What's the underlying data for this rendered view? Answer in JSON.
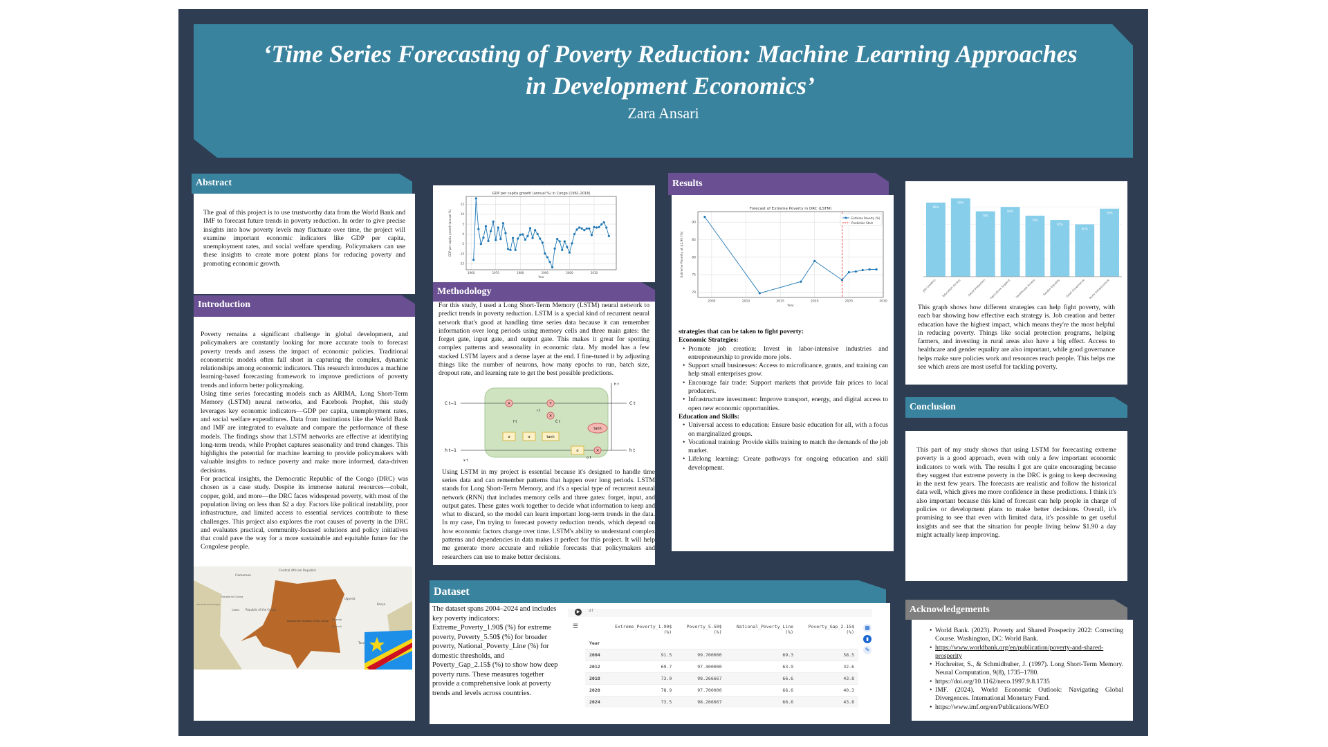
{
  "header": {
    "title": "‘Time Series Forecasting of Poverty Reduction: Machine Learning Approaches in Development Economics’",
    "author": "Zara Ansari"
  },
  "abstract": {
    "heading": "Abstract",
    "text": "The goal of this project is to use trustworthy data from the World Bank and IMF to forecast future trends in poverty reduction. In order to give precise insights into how poverty levels may fluctuate over time, the project will examine important economic indicators like GDP per capita, unemployment rates, and social welfare spending. Policymakers can use these insights to create more potent plans for reducing poverty and promoting economic growth."
  },
  "introduction": {
    "heading": "Introduction",
    "paragraphs": [
      "Poverty remains a significant challenge in global development, and policymakers are constantly looking for more accurate tools to forecast poverty trends and assess the impact of economic policies. Traditional econometric models often fall short in capturing the complex, dynamic relationships among economic indicators. This research introduces a machine learning-based forecasting framework to improve predictions of poverty trends and inform better policymaking.",
      "Using time series forecasting models such as ARIMA, Long Short-Term Memory (LSTM) neural networks, and Facebook Prophet, this study leverages key economic indicators—GDP per capita, unemployment rates, and social welfare expenditures. Data from institutions like the World Bank and IMF are integrated to evaluate and compare the performance of these models. The findings show that LSTM networks are effective at identifying long-term trends, while Prophet captures seasonality and trend changes. This highlights the potential for machine learning to provide policymakers with valuable insights to reduce poverty and make more informed, data-driven decisions.",
      "For practical insights, the Democratic Republic of the Congo (DRC) was chosen as a case study. Despite its immense natural resources—cobalt, copper, gold, and more—the DRC faces widespread poverty, with most of the population living on less than $2 a day. Factors like political instability, poor infrastructure, and limited access to essential services contribute to these challenges. This project also explores the root causes of poverty in the DRC and evaluates practical, community-focused solutions and policy initiatives that could pave the way for a more sustainable and equitable future for the Congolese people."
    ]
  },
  "map": {
    "labels": [
      "Cameroon",
      "Central African Republic",
      "Equatorial Guinea",
      "São Tomé and Príncipe",
      "Gabon",
      "Republic of the Congo",
      "Democratic Republic of the Congo",
      "Uganda",
      "Kenya",
      "Rwanda",
      "Burundi",
      "Tanzania"
    ],
    "flag_colors": {
      "blue": "#1e8fe8",
      "yellow": "#f7d618",
      "red": "#ce1021"
    }
  },
  "methodology": {
    "heading": "Methodology",
    "text1": "For this study, I used a Long Short-Term Memory (LSTM) neural network to predict trends in poverty reduction. LSTM is a special kind of recurrent neural network that's good at handling time series data because it can remember information over long periods using memory cells and three main gates: the forget gate, input gate, and output gate. This makes it great for spotting complex patterns and seasonality in economic data. My model has a few stacked LSTM layers and a dense layer at the end. I fine-tuned it by adjusting things like the number of neurons, how many epochs to run, batch size, dropout rate, and learning rate to get the best possible predictions.",
    "text2": "Using LSTM in my project is essential because it's designed to handle time series data and can remember patterns that happen over long periods. LSTM stands for Long Short-Term Memory, and it's a special type of recurrent neural network (RNN) that includes memory cells and three gates: forget, input, and output gates. These gates work together to decide what information to keep and what to discard, so the model can learn important long-term trends in the data. In my case, I'm trying to forecast poverty reduction trends, which depend on how economic factors change over time. LSTM's ability to understand complex patterns and dependencies in data makes it perfect for this project. It will help me generate more accurate and reliable forecasts that policymakers and researchers can use to make better decisions.",
    "diagram": {
      "c_prev": "C t−1",
      "c_t": "C t",
      "h_prev": "h t−1",
      "h_t": "h t",
      "x_t": "x t",
      "f_t": "f t",
      "i_t": "i t",
      "c_tilde": "C̃ t",
      "o_t": "o t",
      "sigma": "σ",
      "tanh": "tanh",
      "times": "×",
      "plus": "+"
    }
  },
  "results": {
    "heading": "Results",
    "intro": "strategies that can be taken to fight poverty:",
    "groups": [
      {
        "title": "Economic Strategies:",
        "items": [
          "Promote job creation: Invest in labor-intensive industries and entrepreneurship to provide more jobs.",
          "Support small businesses: Access to microfinance, grants, and training can help small enterprises grow.",
          "Encourage fair trade: Support markets that provide fair prices to local producers.",
          "Infrastructure investment: Improve transport, energy, and digital access to open new economic opportunities."
        ]
      },
      {
        "title": "Education and Skills:",
        "items": [
          "Universal access to education: Ensure basic education for all, with a focus on marginalized groups.",
          "Vocational training: Provide skills training to match the demands of the job market.",
          "Lifelong learning: Create pathways for ongoing education and skill development."
        ]
      }
    ]
  },
  "strategy_text": "This graph shows how different strategies can help fight poverty, with each bar showing how effective each strategy is. Job creation and better education have the highest impact, which means they're the most helpful in reducing poverty. Things like social protection programs, helping farmers, and investing in rural areas also have a big effect. Access to healthcare and gender equality are also important, while good governance helps make sure policies work and resources reach people. This helps me see which areas are most useful for tackling poverty.",
  "conclusion": {
    "heading": "Conclusion",
    "text": "This part of my study shows that using LSTM for forecasting extreme poverty is a good approach, even with only a few important economic indicators to work with. The results I got are quite encouraging because they suggest that extreme poverty in the DRC is going to keep decreasing in the next few years. The forecasts are realistic and follow the historical data well, which gives me more confidence in these predictions. I think it's also important because this kind of forecast can help people in charge of policies or development plans to make better decisions. Overall, it's promising to see that even with limited data, it's possible to get useful insights and see that the situation for people living below $1.90 a day might actually keep improving."
  },
  "acknowledgements": {
    "heading": "Acknowledgements",
    "items": [
      "World Bank. (2023). Poverty and Shared Prosperity 2022: Correcting Course. Washington, DC: World Bank.",
      "https://www.worldbank.org/en/publication/poverty-and-shared-prosperity",
      "Hochreiter, S., & Schmidhuber, J. (1997). Long Short-Term Memory. Neural Computation, 9(8), 1735–1780.",
      "https://doi.org/10.1162/neco.1997.9.8.1735",
      "IMF. (2024). World Economic Outlook: Navigating Global Divergences. International Monetary Fund.",
      "https://www.imf.org/en/Publications/WEO"
    ]
  },
  "dataset": {
    "heading": "Dataset",
    "text": "The dataset spans 2004–2024 and includes key poverty indicators: Extreme_Poverty_1.90$ (%) for extreme poverty, Poverty_5.50$ (%) for broader poverty, National_Poverty_Line (%) for domestic thresholds, and Poverty_Gap_2.15$ (%) to show how deep poverty runs. These measures together provide a comprehensive look at poverty trends and levels across countries.",
    "cell_code": "df",
    "index_name": "Year",
    "columns": [
      "Extreme_Poverty_1.90$ (%)",
      "Poverty_5.50$ (%)",
      "National_Poverty_Line (%)",
      "Poverty_Gap_2.15$ (%)"
    ],
    "rows": [
      [
        "2004",
        "91.5",
        "99.700000",
        "69.3",
        "58.5"
      ],
      [
        "2012",
        "69.7",
        "97.400000",
        "63.9",
        "32.6"
      ],
      [
        "2018",
        "73.0",
        "98.266667",
        "66.6",
        "43.8"
      ],
      [
        "2020",
        "78.9",
        "97.700000",
        "66.6",
        "40.3"
      ],
      [
        "2024",
        "73.5",
        "98.266667",
        "66.6",
        "43.8"
      ]
    ]
  },
  "colors": {
    "background": "#2e3d52",
    "teal": "#3a839f",
    "purple": "#6a4f93",
    "gray": "#7f7f7f",
    "line": "#1f77b4",
    "bar": "#87ceeb"
  },
  "chart_data": [
    {
      "type": "line",
      "title": "GDP per capita growth (annual %) in Congo (1961-2016)",
      "xlabel": "Year",
      "ylabel": "GDP per capita growth (annual %)",
      "xlim": [
        1958,
        2019
      ],
      "ylim": [
        -18,
        19
      ],
      "xticks": [
        1960,
        1970,
        1980,
        1990,
        2000,
        2010
      ],
      "yticks": [
        -15,
        -10,
        -5,
        0,
        5,
        10,
        15
      ],
      "grid": true,
      "x": [
        1961,
        1962,
        1963,
        1964,
        1965,
        1966,
        1967,
        1968,
        1969,
        1970,
        1971,
        1972,
        1973,
        1974,
        1975,
        1976,
        1977,
        1978,
        1979,
        1980,
        1981,
        1982,
        1983,
        1984,
        1985,
        1986,
        1987,
        1988,
        1989,
        1990,
        1991,
        1992,
        1993,
        1994,
        1995,
        1996,
        1997,
        1998,
        1999,
        2000,
        2001,
        2002,
        2003,
        2004,
        2005,
        2006,
        2007,
        2008,
        2009,
        2010,
        2011,
        2012,
        2013,
        2014,
        2015,
        2016
      ],
      "y": [
        -13,
        18,
        2.5,
        -5,
        -1.8,
        4,
        -3.5,
        1.5,
        6.3,
        -3,
        3.3,
        -2.5,
        5.5,
        0.5,
        -7.5,
        -8,
        -2,
        -8,
        -2.3,
        -0.3,
        -0.2,
        -2.8,
        -1,
        3,
        -2,
        2,
        0,
        -2.3,
        -4.3,
        -9.8,
        -11.7,
        -14,
        -16.8,
        -7.3,
        -2.5,
        -3.7,
        -8,
        -3.7,
        -6.5,
        -9.3,
        -4.7,
        0,
        2.3,
        3.3,
        2.8,
        2,
        2.8,
        2.8,
        -0.5,
        3.5,
        3.3,
        3.5,
        4.9,
        5.9,
        3.3,
        -1
      ]
    },
    {
      "type": "line",
      "title": "Forecast of Extreme Poverty in DRC (LSTM)",
      "xlabel": "Year",
      "ylabel": "Extreme Poverty at $1.90 (%)",
      "xlim": [
        2003,
        2030
      ],
      "ylim": [
        68.5,
        93
      ],
      "xticks": [
        2005,
        2010,
        2015,
        2020,
        2025,
        2030
      ],
      "yticks": [
        70,
        75,
        80,
        85,
        90
      ],
      "grid": true,
      "legend": "top-right",
      "series": [
        {
          "name": "Extreme Poverty (%)",
          "x": [
            2004,
            2012,
            2018,
            2020,
            2024,
            2025,
            2026,
            2027,
            2028,
            2029
          ],
          "y": [
            91.5,
            69.7,
            73.0,
            78.9,
            73.5,
            75.7,
            75.9,
            76.3,
            76.5,
            76.5
          ]
        }
      ],
      "vline": {
        "name": "Prediction Start",
        "x": 2024
      }
    },
    {
      "type": "bar",
      "categories": [
        "Job Creation",
        "Education Access",
        "Social Protection",
        "Agriculture Support",
        "Healthcare Access",
        "Gender Equality",
        "Good Governance",
        "Rural Infrastructure"
      ],
      "values": [
        85,
        90,
        75,
        80,
        70,
        65,
        60,
        78
      ],
      "labels": [
        "85%",
        "90%",
        "75%",
        "80%",
        "70%",
        "65%",
        "60%",
        "78%"
      ],
      "ylim": [
        0,
        100
      ],
      "grid": true
    }
  ]
}
